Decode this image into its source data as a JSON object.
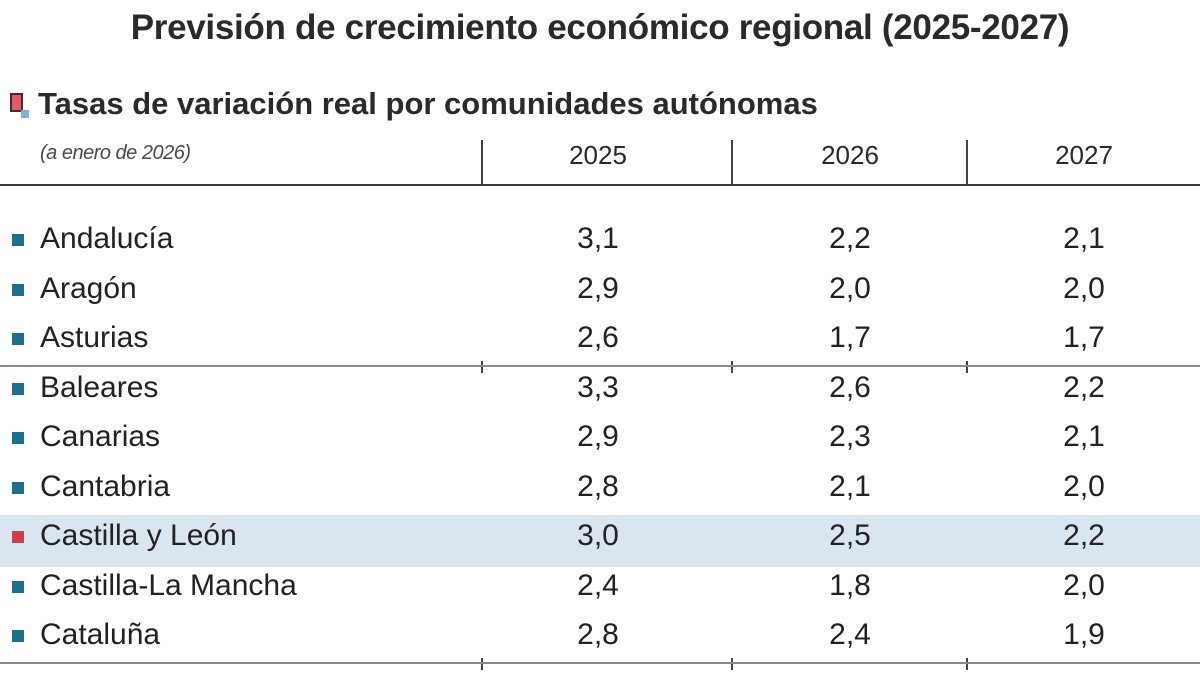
{
  "header": {
    "title": "Previsión de crecimiento económico regional (2025-2027)",
    "subtitle": "Tasas de variación real por comunidades autónomas",
    "note": "(a enero de 2026)"
  },
  "colors": {
    "marker_default": "#1f6e8c",
    "marker_highlight": "#d23c4e",
    "highlight_background": "#d9e6ef"
  },
  "chart_data": {
    "type": "table",
    "columns": [
      "2025",
      "2026",
      "2027"
    ],
    "highlighted_region": "Castilla y León",
    "rows": [
      {
        "region": "Andalucía",
        "values": [
          "3,1",
          "2,2",
          "2,1"
        ]
      },
      {
        "region": "Aragón",
        "values": [
          "2,9",
          "2,0",
          "2,0"
        ]
      },
      {
        "region": "Asturias",
        "values": [
          "2,6",
          "1,7",
          "1,7"
        ]
      },
      {
        "region": "Baleares",
        "values": [
          "3,3",
          "2,6",
          "2,2"
        ]
      },
      {
        "region": "Canarias",
        "values": [
          "2,9",
          "2,3",
          "2,1"
        ]
      },
      {
        "region": "Cantabria",
        "values": [
          "2,8",
          "2,1",
          "2,0"
        ]
      },
      {
        "region": "Castilla y León",
        "values": [
          "3,0",
          "2,5",
          "2,2"
        ]
      },
      {
        "region": "Castilla-La Mancha",
        "values": [
          "2,4",
          "1,8",
          "2,0"
        ]
      },
      {
        "region": "Cataluña",
        "values": [
          "2,8",
          "2,4",
          "1,9"
        ]
      }
    ]
  }
}
